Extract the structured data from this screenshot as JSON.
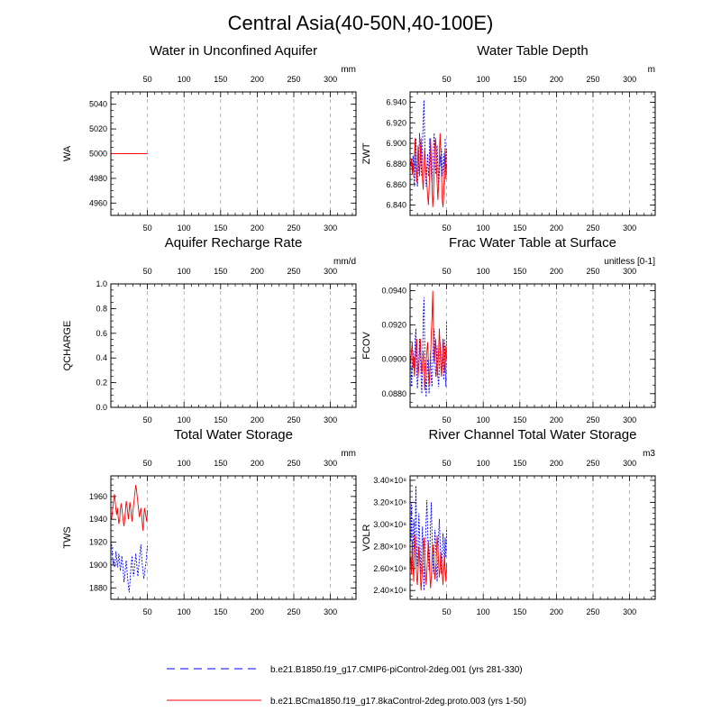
{
  "figure": {
    "title": "Central Asia(40-50N,40-100E)",
    "legend": [
      {
        "label": "b.e21.B1850.f19_g17.CMIP6-piControl-2deg.001 (yrs 281-330)",
        "color": "#0000ff",
        "style": "dashed"
      },
      {
        "label": "b.e21.BCma1850.f19_g17.8kaControl-2deg.proto.003 (yrs 1-50)",
        "color": "#ff0000",
        "style": "solid"
      }
    ],
    "colors": {
      "run1": "#0000ff",
      "run2": "#ff0000",
      "top_ticks": "#0000ff",
      "bottom_ticks": "#ff0000",
      "grid": "#999999"
    }
  },
  "chart_data": [
    {
      "type": "line",
      "title": "Water in Unconfined Aquifer",
      "ylabel": "WA",
      "units": "mm",
      "xlim": [
        0,
        335
      ],
      "ylim": [
        4950,
        5050
      ],
      "xticks": [
        50,
        100,
        150,
        200,
        250,
        300
      ],
      "xticklabels": [
        "50",
        "100",
        "150",
        "200",
        "250",
        "300"
      ],
      "yticks": [
        4960,
        4980,
        5000,
        5020,
        5040
      ],
      "yticklabels": [
        "4960",
        "4980",
        "5000",
        "5020",
        "5040"
      ],
      "series": [
        {
          "name": "b.e21.B1850.f19_g17.CMIP6-piControl-2deg.001 (yrs 281-330)",
          "color": "#0000ff",
          "dash": true,
          "values": [
            5000,
            5000,
            5000,
            5000,
            5000,
            5000,
            5000,
            5000,
            5000,
            5000,
            5000,
            5000,
            5000,
            5000,
            5000,
            5000,
            5000,
            5000,
            5000,
            5000,
            5000,
            5000,
            5000,
            5000,
            5000,
            5000,
            5000,
            5000,
            5000,
            5000,
            5000,
            5000,
            5000,
            5000,
            5000,
            5000,
            5000,
            5000,
            5000,
            5000,
            5000,
            5000,
            5000,
            5000,
            5000,
            5000,
            5000,
            5000,
            5000,
            5000
          ]
        },
        {
          "name": "b.e21.BCma1850.f19_g17.8kaControl-2deg.proto.003 (yrs 1-50)",
          "color": "#ff0000",
          "dash": false,
          "values": [
            5000,
            5000,
            5000,
            5000,
            5000,
            5000,
            5000,
            5000,
            5000,
            5000,
            5000,
            5000,
            5000,
            5000,
            5000,
            5000,
            5000,
            5000,
            5000,
            5000,
            5000,
            5000,
            5000,
            5000,
            5000,
            5000,
            5000,
            5000,
            5000,
            5000,
            5000,
            5000,
            5000,
            5000,
            5000,
            5000,
            5000,
            5000,
            5000,
            5000,
            5000,
            5000,
            5000,
            5000,
            5000,
            5000,
            5000,
            5000,
            5000,
            5000
          ]
        }
      ]
    },
    {
      "type": "line",
      "title": "Water Table Depth",
      "ylabel": "ZWT",
      "units": "m",
      "xlim": [
        0,
        335
      ],
      "ylim": [
        6.83,
        6.95
      ],
      "xticks": [
        50,
        100,
        150,
        200,
        250,
        300
      ],
      "xticklabels": [
        "50",
        "100",
        "150",
        "200",
        "250",
        "300"
      ],
      "yticks": [
        6.84,
        6.86,
        6.88,
        6.9,
        6.92,
        6.94
      ],
      "yticklabels": [
        "6.840",
        "6.860",
        "6.880",
        "6.900",
        "6.920",
        "6.940"
      ],
      "series": [
        {
          "name": "b.e21.B1850.f19_g17.CMIP6-piControl-2deg.001 (yrs 281-330)",
          "color": "#0000ff",
          "dash": true,
          "values": [
            6.882,
            6.878,
            6.875,
            6.888,
            6.87,
            6.858,
            6.88,
            6.905,
            6.872,
            6.858,
            6.87,
            6.884,
            6.91,
            6.895,
            6.878,
            6.868,
            6.9,
            6.925,
            6.942,
            6.905,
            6.88,
            6.858,
            6.875,
            6.89,
            6.868,
            6.88,
            6.905,
            6.89,
            6.87,
            6.862,
            6.88,
            6.895,
            6.91,
            6.885,
            6.87,
            6.88,
            6.898,
            6.875,
            6.86,
            6.87,
            6.888,
            6.878,
            6.895,
            6.868,
            6.875,
            6.89,
            6.86,
            6.905,
            6.87,
            6.895
          ]
        },
        {
          "name": "b.e21.BCma1850.f19_g17.8kaControl-2deg.proto.003 (yrs 1-50)",
          "color": "#ff0000",
          "dash": false,
          "values": [
            6.878,
            6.885,
            6.87,
            6.88,
            6.868,
            6.89,
            6.905,
            6.88,
            6.862,
            6.875,
            6.898,
            6.88,
            6.868,
            6.89,
            6.905,
            6.88,
            6.865,
            6.855,
            6.878,
            6.895,
            6.88,
            6.87,
            6.86,
            6.85,
            6.84,
            6.855,
            6.88,
            6.905,
            6.885,
            6.862,
            6.838,
            6.85,
            6.875,
            6.898,
            6.905,
            6.88,
            6.862,
            6.845,
            6.86,
            6.89,
            6.91,
            6.892,
            6.87,
            6.845,
            6.838,
            6.85,
            6.878,
            6.895,
            6.865,
            6.88
          ]
        }
      ]
    },
    {
      "type": "line",
      "title": "Aquifer Recharge Rate",
      "ylabel": "QCHARGE",
      "units": "mm/d",
      "xlim": [
        0,
        335
      ],
      "ylim": [
        0.0,
        1.0
      ],
      "xticks": [
        50,
        100,
        150,
        200,
        250,
        300
      ],
      "xticklabels": [
        "50",
        "100",
        "150",
        "200",
        "250",
        "300"
      ],
      "yticks": [
        0.0,
        0.2,
        0.4,
        0.6,
        0.8,
        1.0
      ],
      "yticklabels": [
        "0.0",
        "0.2",
        "0.4",
        "0.6",
        "0.8",
        "1.0"
      ],
      "series": [
        {
          "name": "b.e21.B1850.f19_g17.CMIP6-piControl-2deg.001 (yrs 281-330)",
          "color": "#0000ff",
          "dash": true,
          "values": [
            0,
            0,
            0,
            0,
            0,
            0,
            0,
            0,
            0,
            0,
            0,
            0,
            0,
            0,
            0,
            0,
            0,
            0,
            0,
            0,
            0,
            0,
            0,
            0,
            0,
            0,
            0,
            0,
            0,
            0,
            0,
            0,
            0,
            0,
            0,
            0,
            0,
            0,
            0,
            0,
            0,
            0,
            0,
            0,
            0,
            0,
            0,
            0,
            0,
            0
          ]
        },
        {
          "name": "b.e21.BCma1850.f19_g17.8kaControl-2deg.proto.003 (yrs 1-50)",
          "color": "#ff0000",
          "dash": false,
          "values": [
            0,
            0,
            0,
            0,
            0,
            0,
            0,
            0,
            0,
            0,
            0,
            0,
            0,
            0,
            0,
            0,
            0,
            0,
            0,
            0,
            0,
            0,
            0,
            0,
            0,
            0,
            0,
            0,
            0,
            0,
            0,
            0,
            0,
            0,
            0,
            0,
            0,
            0,
            0,
            0,
            0,
            0,
            0,
            0,
            0,
            0,
            0,
            0,
            0,
            0
          ]
        }
      ]
    },
    {
      "type": "line",
      "title": "Frac Water Table at Surface",
      "ylabel": "FCOV",
      "units": "unitless [0-1]",
      "xlim": [
        0,
        335
      ],
      "ylim": [
        0.0872,
        0.0944
      ],
      "xticks": [
        50,
        100,
        150,
        200,
        250,
        300
      ],
      "xticklabels": [
        "50",
        "100",
        "150",
        "200",
        "250",
        "300"
      ],
      "yticks": [
        0.088,
        0.09,
        0.092,
        0.094
      ],
      "yticklabels": [
        "0.0880",
        "0.0900",
        "0.0920",
        "0.0940"
      ],
      "series": [
        {
          "name": "b.e21.B1850.f19_g17.CMIP6-piControl-2deg.001 (yrs 281-330)",
          "color": "#0000ff",
          "dash": true,
          "values": [
            0.0902,
            0.0884,
            0.0895,
            0.0905,
            0.0898,
            0.089,
            0.0912,
            0.0918,
            0.0896,
            0.0883,
            0.089,
            0.09,
            0.0912,
            0.0905,
            0.089,
            0.088,
            0.0898,
            0.0925,
            0.0936,
            0.091,
            0.0892,
            0.0878,
            0.0888,
            0.09,
            0.0892,
            0.088,
            0.0895,
            0.0905,
            0.0888,
            0.0884,
            0.0898,
            0.091,
            0.0918,
            0.09,
            0.089,
            0.0896,
            0.0908,
            0.089,
            0.0884,
            0.0895,
            0.091,
            0.0898,
            0.089,
            0.0905,
            0.09,
            0.0888,
            0.0912,
            0.0896,
            0.0884,
            0.0922
          ]
        },
        {
          "name": "b.e21.BCma1850.f19_g17.8kaControl-2deg.proto.003 (yrs 1-50)",
          "color": "#ff0000",
          "dash": false,
          "values": [
            0.0898,
            0.0905,
            0.091,
            0.0895,
            0.0902,
            0.089,
            0.0898,
            0.0908,
            0.0912,
            0.09,
            0.089,
            0.0896,
            0.0905,
            0.0912,
            0.09,
            0.0892,
            0.0898,
            0.0905,
            0.0896,
            0.0882,
            0.089,
            0.0898,
            0.0905,
            0.091,
            0.09,
            0.0885,
            0.0892,
            0.09,
            0.0915,
            0.0925,
            0.094,
            0.0915,
            0.0898,
            0.0905,
            0.0912,
            0.09,
            0.089,
            0.0895,
            0.0905,
            0.0918,
            0.0908,
            0.0896,
            0.089,
            0.09,
            0.0912,
            0.0905,
            0.0892,
            0.0898,
            0.0908,
            0.09
          ]
        }
      ]
    },
    {
      "type": "line",
      "title": "Total Water Storage",
      "ylabel": "TWS",
      "units": "mm",
      "xlim": [
        0,
        335
      ],
      "ylim": [
        1870,
        1978
      ],
      "xticks": [
        50,
        100,
        150,
        200,
        250,
        300
      ],
      "xticklabels": [
        "50",
        "100",
        "150",
        "200",
        "250",
        "300"
      ],
      "yticks": [
        1880,
        1900,
        1920,
        1940,
        1960
      ],
      "yticklabels": [
        "1880",
        "1900",
        "1920",
        "1940",
        "1960"
      ],
      "series": [
        {
          "name": "b.e21.B1850.f19_g17.CMIP6-piControl-2deg.001 (yrs 281-330)",
          "color": "#0000ff",
          "dash": true,
          "values": [
            1918,
            1910,
            1900,
            1905,
            1898,
            1902,
            1912,
            1906,
            1898,
            1904,
            1910,
            1902,
            1895,
            1900,
            1908,
            1902,
            1894,
            1885,
            1890,
            1898,
            1904,
            1896,
            1888,
            1882,
            1876,
            1884,
            1893,
            1902,
            1908,
            1898,
            1890,
            1895,
            1902,
            1910,
            1904,
            1896,
            1890,
            1898,
            1905,
            1912,
            1918,
            1908,
            1900,
            1895,
            1888,
            1892,
            1898,
            1902,
            1910,
            1918
          ]
        },
        {
          "name": "b.e21.BCma1850.f19_g17.8kaControl-2deg.proto.003 (yrs 1-50)",
          "color": "#ff0000",
          "dash": false,
          "values": [
            1940,
            1946,
            1952,
            1958,
            1962,
            1955,
            1948,
            1944,
            1950,
            1942,
            1936,
            1940,
            1948,
            1954,
            1950,
            1944,
            1938,
            1934,
            1940,
            1948,
            1956,
            1952,
            1946,
            1940,
            1948,
            1955,
            1950,
            1944,
            1938,
            1946,
            1952,
            1958,
            1964,
            1970,
            1966,
            1960,
            1954,
            1948,
            1942,
            1946,
            1950,
            1944,
            1936,
            1930,
            1942,
            1950,
            1946,
            1942,
            1938,
            1948
          ]
        }
      ]
    },
    {
      "type": "line",
      "title": "River Channel Total Water Storage",
      "ylabel": "VOLR",
      "units": "m3",
      "xlim": [
        0,
        335
      ],
      "ylim": [
        232000000.0,
        344000000.0
      ],
      "xticks": [
        50,
        100,
        150,
        200,
        250,
        300
      ],
      "xticklabels": [
        "50",
        "100",
        "150",
        "200",
        "250",
        "300"
      ],
      "yticks": [
        240000000.0,
        260000000.0,
        280000000.0,
        300000000.0,
        320000000.0,
        340000000.0
      ],
      "yticklabels": [
        "2.40×10⁸",
        "2.60×10⁸",
        "2.80×10⁸",
        "3.00×10⁸",
        "3.20×10⁸",
        "3.40×10⁸"
      ],
      "series": [
        {
          "name": "b.e21.B1850.f19_g17.CMIP6-piControl-2deg.001 (yrs 281-330)",
          "color": "#0000ff",
          "dash": true,
          "values": [
            285000000.0,
            320000000.0,
            260000000.0,
            278000000.0,
            305000000.0,
            270000000.0,
            295000000.0,
            335000000.0,
            282000000.0,
            262000000.0,
            275000000.0,
            310000000.0,
            292000000.0,
            268000000.0,
            255000000.0,
            280000000.0,
            298000000.0,
            270000000.0,
            240000000.0,
            262000000.0,
            285000000.0,
            305000000.0,
            322000000.0,
            295000000.0,
            270000000.0,
            258000000.0,
            275000000.0,
            300000000.0,
            320000000.0,
            290000000.0,
            268000000.0,
            255000000.0,
            278000000.0,
            295000000.0,
            282000000.0,
            262000000.0,
            248000000.0,
            270000000.0,
            290000000.0,
            305000000.0,
            285000000.0,
            265000000.0,
            255000000.0,
            275000000.0,
            292000000.0,
            280000000.0,
            262000000.0,
            288000000.0,
            270000000.0,
            295000000.0
          ]
        },
        {
          "name": "b.e21.BCma1850.f19_g17.8kaControl-2deg.proto.003 (yrs 1-50)",
          "color": "#ff0000",
          "dash": false,
          "values": [
            270000000.0,
            255000000.0,
            285000000.0,
            262000000.0,
            248000000.0,
            275000000.0,
            290000000.0,
            268000000.0,
            252000000.0,
            245000000.0,
            260000000.0,
            280000000.0,
            270000000.0,
            255000000.0,
            240000000.0,
            250000000.0,
            262000000.0,
            278000000.0,
            288000000.0,
            270000000.0,
            255000000.0,
            245000000.0,
            258000000.0,
            272000000.0,
            285000000.0,
            270000000.0,
            255000000.0,
            242000000.0,
            252000000.0,
            268000000.0,
            282000000.0,
            275000000.0,
            262000000.0,
            250000000.0,
            258000000.0,
            272000000.0,
            290000000.0,
            280000000.0,
            265000000.0,
            252000000.0,
            260000000.0,
            275000000.0,
            268000000.0,
            255000000.0,
            245000000.0,
            258000000.0,
            272000000.0,
            260000000.0,
            248000000.0,
            265000000.0
          ]
        }
      ]
    }
  ]
}
